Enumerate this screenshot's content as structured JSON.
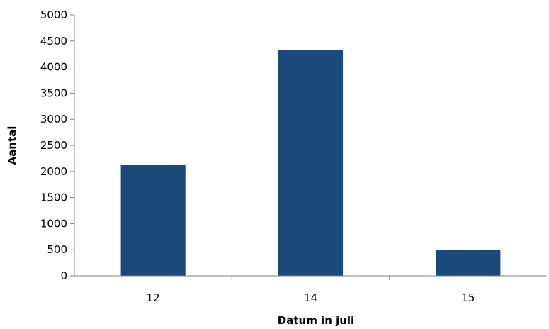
{
  "chart_data": {
    "type": "bar",
    "categories": [
      "12",
      "14",
      "15"
    ],
    "values": [
      2130,
      4330,
      500
    ],
    "xlabel": "Datum in juli",
    "ylabel": "Aantal",
    "ylim": [
      0,
      5000
    ],
    "yticks": [
      0,
      500,
      1000,
      1500,
      2000,
      2500,
      3000,
      3500,
      4000,
      4500,
      5000
    ],
    "bar_color": "#1a4a7a",
    "axis_color": "#808080",
    "grid": false,
    "legend": "none"
  }
}
